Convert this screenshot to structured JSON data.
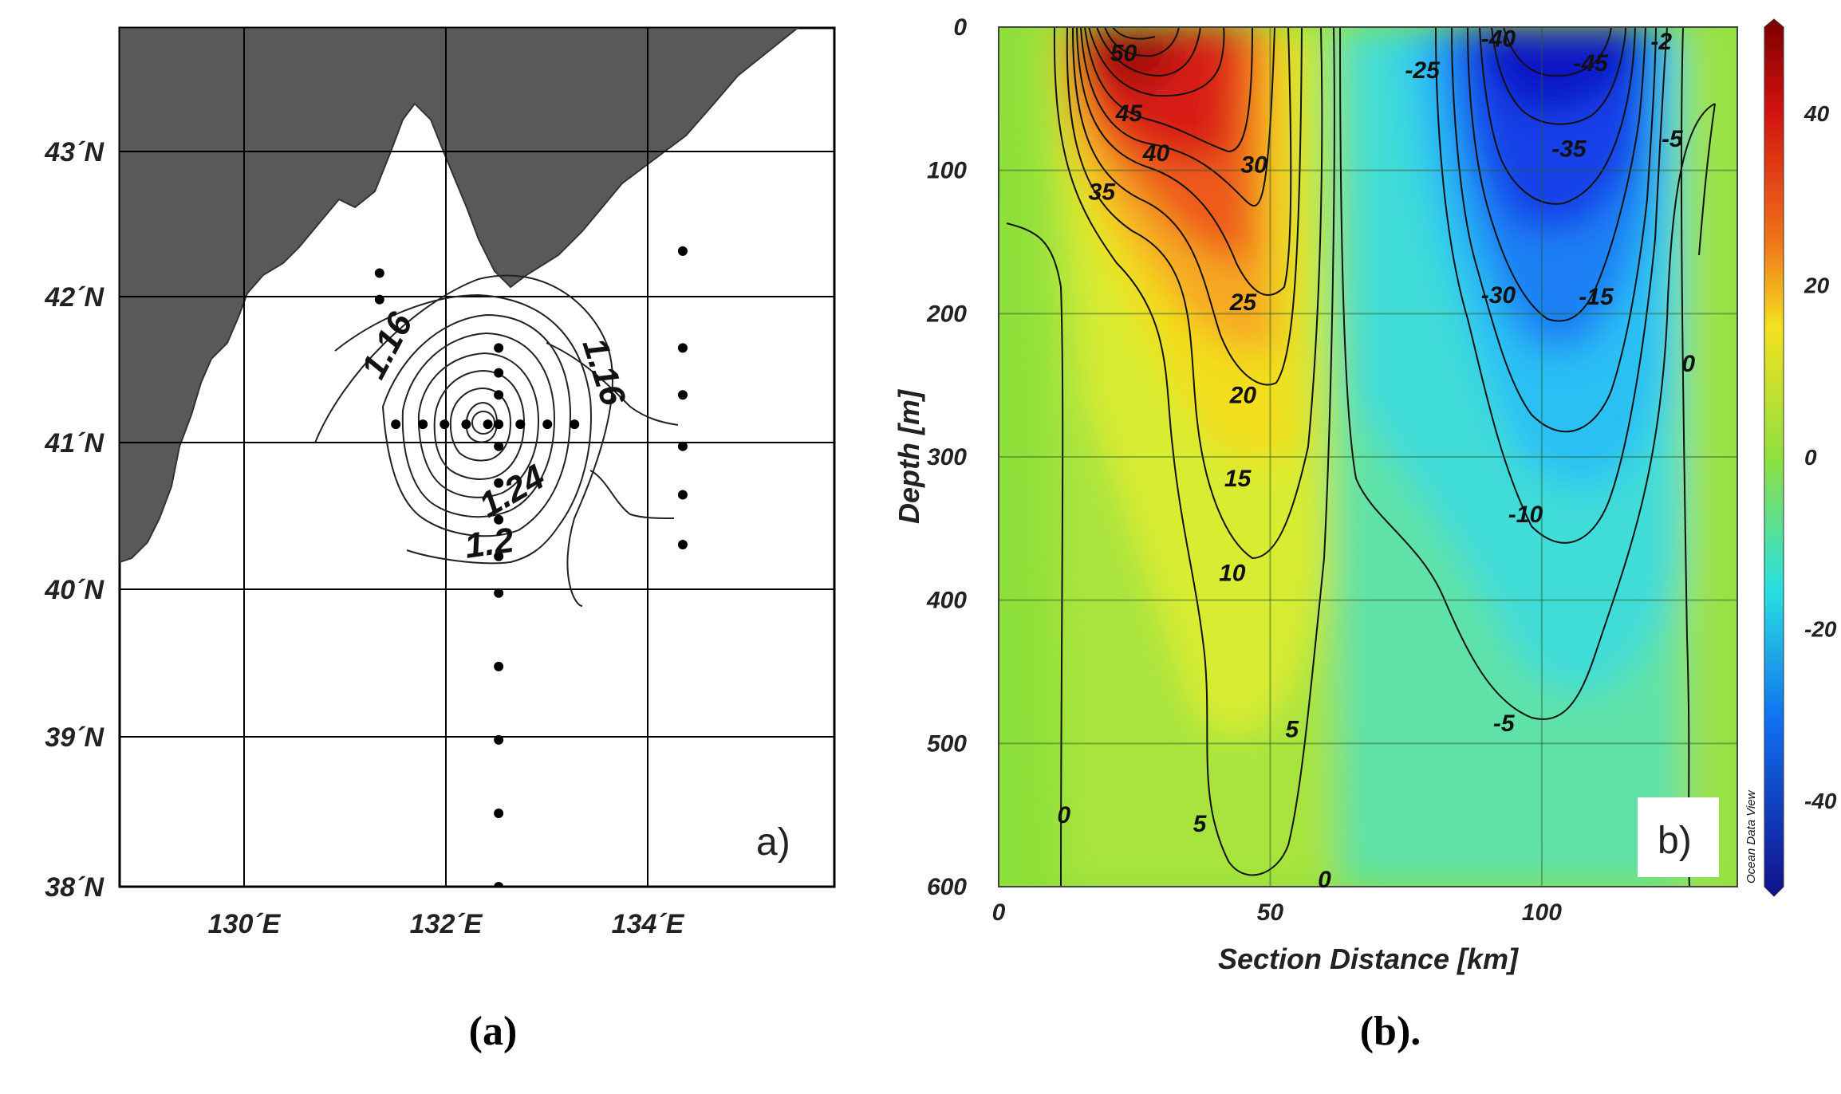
{
  "figure": {
    "caption_a": "(a)",
    "caption_b": "(b)."
  },
  "panel_a": {
    "panel_label": "a)",
    "x_ticks": [
      "130´E",
      "132´E",
      "134´E"
    ],
    "y_ticks": [
      "43´N",
      "42´N",
      "41´N",
      "40´N",
      "39´N",
      "38´N"
    ],
    "contour_labels": [
      "1.16",
      "1.16",
      "1.24",
      "1.2"
    ],
    "colors": {
      "land": "#595959",
      "sea": "#ffffff",
      "grid": "#000000",
      "contour": "#222222"
    }
  },
  "panel_b": {
    "panel_label": "b)",
    "xlabel": "Section Distance [km]",
    "ylabel": "Depth [m]",
    "watermark": "Ocean Data View",
    "colorbar_ticks": [
      "40",
      "20",
      "0",
      "-20",
      "-40"
    ],
    "colors": {
      "warm": "#c80a0a",
      "cold": "#1010e0",
      "neutral": "#8ee03a",
      "contour": "#111111"
    }
  },
  "chart_data": [
    {
      "type": "scatter",
      "subtype": "contour map with station locations",
      "xlim": [
        128.8,
        135.4
      ],
      "ylim": [
        38,
        43.85
      ],
      "x_ticks": [
        130,
        132,
        134
      ],
      "y_ticks": [
        38,
        39,
        40,
        41,
        42,
        43
      ],
      "grid": true,
      "contour_levels": [
        1.16,
        1.2,
        1.24
      ],
      "stations": [
        {
          "lon": 131.2,
          "lat": 42.18
        },
        {
          "lon": 131.2,
          "lat": 42.0
        },
        {
          "lon": 131.35,
          "lat": 41.15
        },
        {
          "lon": 131.6,
          "lat": 41.15
        },
        {
          "lon": 131.8,
          "lat": 41.15
        },
        {
          "lon": 132.0,
          "lat": 41.15
        },
        {
          "lon": 132.2,
          "lat": 41.15
        },
        {
          "lon": 132.3,
          "lat": 41.15
        },
        {
          "lon": 132.5,
          "lat": 41.15
        },
        {
          "lon": 132.75,
          "lat": 41.15
        },
        {
          "lon": 133.0,
          "lat": 41.15
        },
        {
          "lon": 132.3,
          "lat": 41.67
        },
        {
          "lon": 132.3,
          "lat": 41.5
        },
        {
          "lon": 132.3,
          "lat": 41.35
        },
        {
          "lon": 132.3,
          "lat": 41.0
        },
        {
          "lon": 132.3,
          "lat": 40.75
        },
        {
          "lon": 132.3,
          "lat": 40.5
        },
        {
          "lon": 132.3,
          "lat": 40.25
        },
        {
          "lon": 132.3,
          "lat": 40.0
        },
        {
          "lon": 132.3,
          "lat": 39.5
        },
        {
          "lon": 132.3,
          "lat": 39.0
        },
        {
          "lon": 132.3,
          "lat": 38.5
        },
        {
          "lon": 132.3,
          "lat": 38.0
        },
        {
          "lon": 134.0,
          "lat": 42.33
        },
        {
          "lon": 134.0,
          "lat": 41.67
        },
        {
          "lon": 134.0,
          "lat": 41.35
        },
        {
          "lon": 134.0,
          "lat": 41.0
        },
        {
          "lon": 134.0,
          "lat": 40.67
        },
        {
          "lon": 134.0,
          "lat": 40.33
        }
      ]
    },
    {
      "type": "heatmap",
      "subtype": "section with contours",
      "xlabel": "Section Distance [km]",
      "ylabel": "Depth [m]",
      "xlim": [
        0,
        136
      ],
      "ylim": [
        600,
        0
      ],
      "x_ticks": [
        0,
        50,
        100
      ],
      "y_ticks": [
        0,
        100,
        200,
        300,
        400,
        500,
        600
      ],
      "colorbar": {
        "range": [
          -50,
          50
        ],
        "ticks": [
          40,
          20,
          0,
          -20,
          -40
        ]
      },
      "grid": true,
      "contour_levels": [
        -45,
        -40,
        -35,
        -30,
        -25,
        -15,
        -10,
        -5,
        0,
        5,
        10,
        15,
        20,
        25,
        30,
        35,
        40,
        45,
        50
      ],
      "contour_labels": [
        {
          "x": 23,
          "depth": 18,
          "value": "50"
        },
        {
          "x": 24,
          "depth": 60,
          "value": "45"
        },
        {
          "x": 29,
          "depth": 88,
          "value": "40"
        },
        {
          "x": 19,
          "depth": 115,
          "value": "35"
        },
        {
          "x": 47,
          "depth": 96,
          "value": "30"
        },
        {
          "x": 45,
          "depth": 192,
          "value": "25"
        },
        {
          "x": 45,
          "depth": 257,
          "value": "20"
        },
        {
          "x": 44,
          "depth": 315,
          "value": "15"
        },
        {
          "x": 43,
          "depth": 381,
          "value": "10"
        },
        {
          "x": 54,
          "depth": 490,
          "value": "5"
        },
        {
          "x": 37,
          "depth": 556,
          "value": "5"
        },
        {
          "x": 12,
          "depth": 550,
          "value": "0"
        },
        {
          "x": 60,
          "depth": 595,
          "value": "0"
        },
        {
          "x": 127,
          "depth": 235,
          "value": "0"
        },
        {
          "x": 78,
          "depth": 30,
          "value": "-25"
        },
        {
          "x": 92,
          "depth": 8,
          "value": "-40"
        },
        {
          "x": 109,
          "depth": 25,
          "value": "-45"
        },
        {
          "x": 105,
          "depth": 85,
          "value": "-35"
        },
        {
          "x": 92,
          "depth": 187,
          "value": "-30"
        },
        {
          "x": 110,
          "depth": 188,
          "value": "-15"
        },
        {
          "x": 97,
          "depth": 340,
          "value": "-10"
        },
        {
          "x": 93,
          "depth": 486,
          "value": "-5"
        },
        {
          "x": 124,
          "depth": 78,
          "value": "-5"
        },
        {
          "x": 122,
          "depth": 10,
          "value": "-2"
        }
      ]
    }
  ]
}
